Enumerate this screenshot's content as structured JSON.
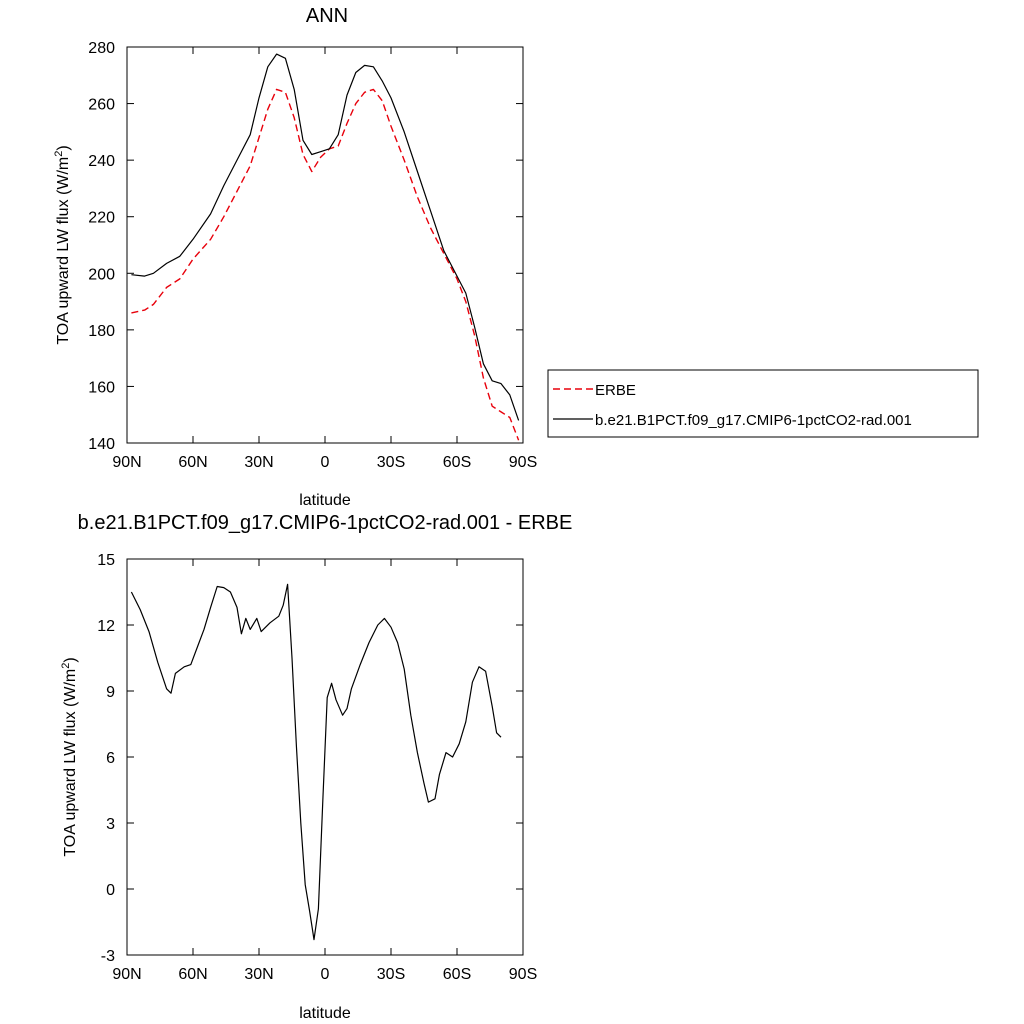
{
  "chart_data": [
    {
      "type": "line",
      "title": "ANN",
      "xlabel": "latitude",
      "ylabel": "TOA upward LW flux (W/m",
      "ylabel_sup": "2",
      "ylabel_close": ")",
      "xlim": [
        90,
        -90
      ],
      "ylim": [
        140,
        280
      ],
      "x_ticks": [
        {
          "value": 90,
          "label": "90N"
        },
        {
          "value": 60,
          "label": "60N"
        },
        {
          "value": 30,
          "label": "30N"
        },
        {
          "value": 0,
          "label": "0"
        },
        {
          "value": -30,
          "label": "30S"
        },
        {
          "value": -60,
          "label": "60S"
        },
        {
          "value": -90,
          "label": "90S"
        }
      ],
      "y_ticks": [
        140,
        160,
        180,
        200,
        220,
        240,
        260,
        280
      ],
      "legend": "outside-right",
      "series": [
        {
          "name": "ERBE",
          "color": "#e8000b",
          "dash": "dashed",
          "points": [
            [
              88,
              186
            ],
            [
              82,
              187
            ],
            [
              78,
              189
            ],
            [
              72,
              195
            ],
            [
              66,
              198
            ],
            [
              60,
              205
            ],
            [
              52,
              212
            ],
            [
              46,
              220
            ],
            [
              40,
              229
            ],
            [
              34,
              238
            ],
            [
              30,
              248
            ],
            [
              26,
              258
            ],
            [
              22,
              265
            ],
            [
              18,
              264
            ],
            [
              14,
              255
            ],
            [
              10,
              242
            ],
            [
              6,
              236
            ],
            [
              2,
              241
            ],
            [
              -2,
              244
            ],
            [
              -6,
              245
            ],
            [
              -10,
              253
            ],
            [
              -14,
              260
            ],
            [
              -18,
              264
            ],
            [
              -22,
              265
            ],
            [
              -26,
              261
            ],
            [
              -30,
              252
            ],
            [
              -36,
              240
            ],
            [
              -42,
              227
            ],
            [
              -48,
              216
            ],
            [
              -54,
              207
            ],
            [
              -60,
              198
            ],
            [
              -64,
              190
            ],
            [
              -68,
              178
            ],
            [
              -72,
              163
            ],
            [
              -76,
              153
            ],
            [
              -80,
              151
            ],
            [
              -84,
              149
            ],
            [
              -88,
              141
            ]
          ]
        },
        {
          "name": "b.e21.B1PCT.f09_g17.CMIP6-1pctCO2-rad.001",
          "color": "#000000",
          "dash": "solid",
          "points": [
            [
              88,
              199.5
            ],
            [
              82,
              199
            ],
            [
              78,
              200
            ],
            [
              72,
              203.5
            ],
            [
              66,
              206
            ],
            [
              60,
              212
            ],
            [
              52,
              221
            ],
            [
              46,
              231
            ],
            [
              40,
              240
            ],
            [
              34,
              249
            ],
            [
              30,
              262
            ],
            [
              26,
              273
            ],
            [
              22,
              277.5
            ],
            [
              18,
              276
            ],
            [
              14,
              265
            ],
            [
              10,
              247
            ],
            [
              6,
              242
            ],
            [
              2,
              243
            ],
            [
              -2,
              244
            ],
            [
              -6,
              249
            ],
            [
              -10,
              263
            ],
            [
              -14,
              271
            ],
            [
              -18,
              273.5
            ],
            [
              -22,
              273
            ],
            [
              -26,
              268
            ],
            [
              -30,
              262
            ],
            [
              -36,
              250
            ],
            [
              -42,
              236
            ],
            [
              -48,
              222
            ],
            [
              -54,
              208
            ],
            [
              -60,
              199
            ],
            [
              -64,
              193
            ],
            [
              -68,
              181
            ],
            [
              -72,
              168
            ],
            [
              -76,
              162
            ],
            [
              -80,
              161
            ],
            [
              -84,
              157
            ],
            [
              -88,
              148
            ]
          ]
        }
      ]
    },
    {
      "type": "line",
      "title": "b.e21.B1PCT.f09_g17.CMIP6-1pctCO2-rad.001 - ERBE",
      "xlabel": "latitude",
      "ylabel": "TOA upward LW flux (W/m",
      "ylabel_sup": "2",
      "ylabel_close": ")",
      "xlim": [
        90,
        -90
      ],
      "ylim": [
        -3,
        15
      ],
      "x_ticks": [
        {
          "value": 90,
          "label": "90N"
        },
        {
          "value": 60,
          "label": "60N"
        },
        {
          "value": 30,
          "label": "30N"
        },
        {
          "value": 0,
          "label": "0"
        },
        {
          "value": -30,
          "label": "30S"
        },
        {
          "value": -60,
          "label": "60S"
        },
        {
          "value": -90,
          "label": "90S"
        }
      ],
      "y_ticks": [
        -3,
        0,
        3,
        6,
        9,
        12,
        15
      ],
      "series": [
        {
          "color": "#000000",
          "dash": "solid",
          "points": [
            [
              88,
              13.5
            ],
            [
              84,
              12.7
            ],
            [
              80,
              11.7
            ],
            [
              76,
              10.3
            ],
            [
              72,
              9.1
            ],
            [
              70,
              8.9
            ],
            [
              68,
              9.8
            ],
            [
              64,
              10.1
            ],
            [
              61,
              10.2
            ],
            [
              58,
              11
            ],
            [
              55,
              11.8
            ],
            [
              52,
              12.8
            ],
            [
              49,
              13.75
            ],
            [
              46,
              13.7
            ],
            [
              43,
              13.5
            ],
            [
              40,
              12.8
            ],
            [
              38,
              11.6
            ],
            [
              36,
              12.3
            ],
            [
              34,
              11.8
            ],
            [
              31,
              12.3
            ],
            [
              29,
              11.7
            ],
            [
              25,
              12.1
            ],
            [
              21,
              12.4
            ],
            [
              19,
              12.9
            ],
            [
              17,
              13.85
            ],
            [
              15,
              10.5
            ],
            [
              13,
              6.5
            ],
            [
              11,
              3
            ],
            [
              9,
              0.2
            ],
            [
              7,
              -1
            ],
            [
              5,
              -2.3
            ],
            [
              3,
              -0.9
            ],
            [
              1,
              4
            ],
            [
              -1,
              8.7
            ],
            [
              -3,
              9.35
            ],
            [
              -5,
              8.6
            ],
            [
              -8,
              7.9
            ],
            [
              -10,
              8.2
            ],
            [
              -12,
              9.1
            ],
            [
              -16,
              10.2
            ],
            [
              -20,
              11.2
            ],
            [
              -24,
              12
            ],
            [
              -27,
              12.3
            ],
            [
              -30,
              11.9
            ],
            [
              -33,
              11.2
            ],
            [
              -36,
              10
            ],
            [
              -39,
              7.9
            ],
            [
              -42,
              6.2
            ],
            [
              -45,
              4.8
            ],
            [
              -47,
              3.95
            ],
            [
              -50,
              4.1
            ],
            [
              -52,
              5.2
            ],
            [
              -55,
              6.2
            ],
            [
              -58,
              6
            ],
            [
              -61,
              6.6
            ],
            [
              -64,
              7.6
            ],
            [
              -67,
              9.4
            ],
            [
              -70,
              10.1
            ],
            [
              -73,
              9.9
            ],
            [
              -76,
              8.3
            ],
            [
              -78,
              7.1
            ],
            [
              -80,
              6.9
            ]
          ]
        }
      ]
    }
  ]
}
